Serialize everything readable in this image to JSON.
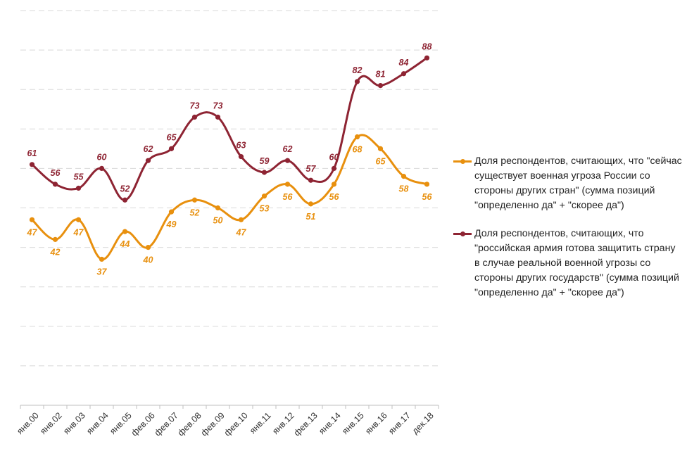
{
  "chart_data": {
    "type": "line",
    "title": "",
    "xlabel": "",
    "ylabel": "",
    "ylim": [
      0,
      100
    ],
    "grid": true,
    "legend_position": "right",
    "categories": [
      "янв.00",
      "янв.02",
      "янв.03",
      "янв.04",
      "янв.05",
      "фев.06",
      "фев.07",
      "фев.08",
      "фев.09",
      "фев.10",
      "янв.11",
      "янв.12",
      "фев.13",
      "янв.14",
      "янв.15",
      "янв.16",
      "янв.17",
      "дек.18"
    ],
    "series": [
      {
        "name": "Доля респондентов, считающих, что \"сейчас существует военная угроза России со стороны других стран\" (сумма позиций \"определенно да\" + \"скорее да\")",
        "color": "#E8900E",
        "values": [
          47,
          42,
          47,
          37,
          44,
          40,
          49,
          52,
          50,
          47,
          53,
          56,
          51,
          56,
          68,
          65,
          58,
          56
        ]
      },
      {
        "name": "Доля респондентов, считающих, что \"российская армия готова защитить страну в случае реальной военной угрозы со стороны других государств\" (сумма позиций \"определенно да\" + \"скорее да\")",
        "color": "#8E2433",
        "values": [
          61,
          56,
          55,
          60,
          52,
          62,
          65,
          73,
          73,
          63,
          59,
          62,
          57,
          60,
          82,
          81,
          84,
          88
        ]
      }
    ]
  }
}
